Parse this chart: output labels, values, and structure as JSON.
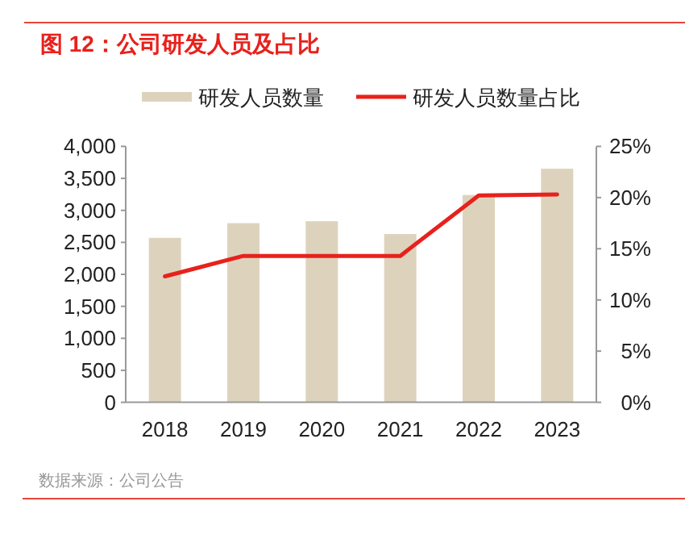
{
  "chart_data": {
    "type": "bar",
    "title": "图 12：公司研发人员及占比",
    "categories": [
      "2018",
      "2019",
      "2020",
      "2021",
      "2022",
      "2023"
    ],
    "series": [
      {
        "name": "研发人员数量",
        "color": "#ddd3bd",
        "values": [
          2570,
          2800,
          2830,
          2630,
          3240,
          3650
        ]
      },
      {
        "name": "研发人员数量占比",
        "type": "line",
        "axis": "y2",
        "color": "#e8211c",
        "values": [
          12.3,
          14.3,
          14.3,
          14.3,
          20.2,
          20.3
        ]
      }
    ],
    "ylim": [
      0,
      4000
    ],
    "yticks": [
      0,
      500,
      {
        "value": 1000,
        "label": "1,000"
      },
      {
        "value": 1500,
        "label": "1,500"
      },
      {
        "value": 2000,
        "label": "2,000"
      },
      {
        "value": 2500,
        "label": "2,500"
      },
      {
        "value": 3000,
        "label": "3,000"
      },
      {
        "value": 3500,
        "label": "3,500"
      },
      {
        "value": 4000,
        "label": "4,000"
      }
    ],
    "y2lim": [
      0,
      25
    ],
    "y2ticks": [
      {
        "value": 0,
        "label": "0%"
      },
      {
        "value": 5,
        "label": "5%"
      },
      {
        "value": 10,
        "label": "10%"
      },
      {
        "value": 15,
        "label": "15%"
      },
      {
        "value": 20,
        "label": "20%"
      },
      {
        "value": 25,
        "label": "25%"
      }
    ],
    "legend": "top",
    "grid": false,
    "annotations": [
      "数据来源：公司公告"
    ]
  }
}
